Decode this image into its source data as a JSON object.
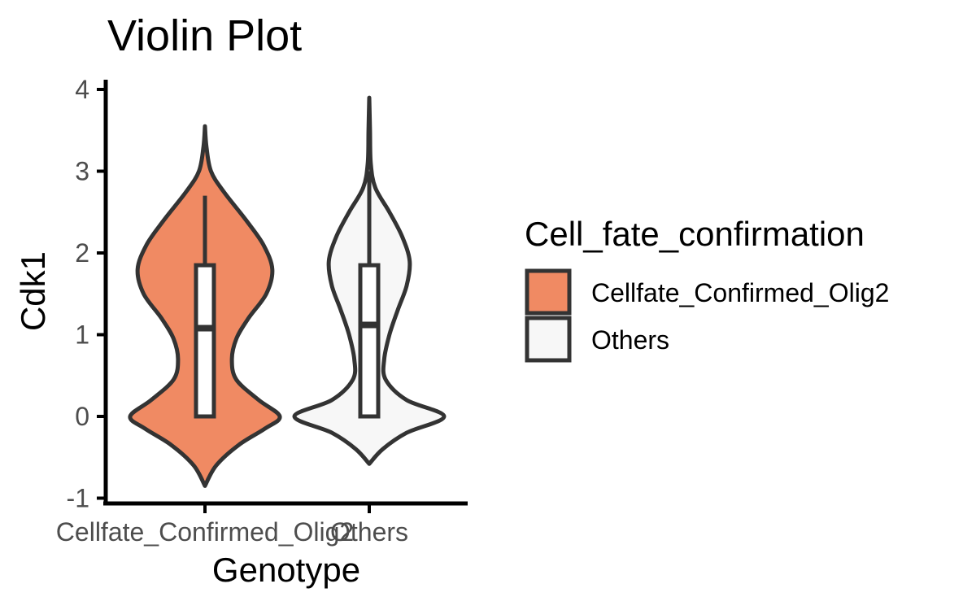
{
  "chart_data": {
    "type": "violin",
    "title": "Violin Plot",
    "xlabel": "Genotype",
    "ylabel": "Cdk1",
    "categories": [
      "Cellfate_Confirmed_Olig2",
      "Others"
    ],
    "ylim": [
      -1,
      4
    ],
    "yticks": [
      -1,
      0,
      1,
      2,
      3,
      4
    ],
    "ytick_labels": [
      "-1",
      "0",
      "1",
      "2",
      "3",
      "4"
    ],
    "grid": false,
    "legend": {
      "title": "Cell_fate_confirmation",
      "placement": "right",
      "entries": [
        "Cellfate_Confirmed_Olig2",
        "Others"
      ]
    },
    "series": [
      {
        "category": "Cellfate_Confirmed_Olig2",
        "color": "#f08a63",
        "violin_min": -0.85,
        "violin_max": 3.55,
        "density": [
          [
            -0.85,
            0.0
          ],
          [
            -0.6,
            0.15
          ],
          [
            -0.35,
            0.45
          ],
          [
            -0.15,
            0.8
          ],
          [
            0.0,
            1.0
          ],
          [
            0.2,
            0.72
          ],
          [
            0.45,
            0.42
          ],
          [
            0.7,
            0.36
          ],
          [
            0.95,
            0.42
          ],
          [
            1.2,
            0.58
          ],
          [
            1.5,
            0.82
          ],
          [
            1.8,
            0.9
          ],
          [
            2.1,
            0.78
          ],
          [
            2.4,
            0.55
          ],
          [
            2.75,
            0.25
          ],
          [
            3.0,
            0.08
          ],
          [
            3.3,
            0.02
          ],
          [
            3.55,
            0.0
          ]
        ],
        "box": {
          "lower_whisker": 0.0,
          "q1": 0.0,
          "median": 1.08,
          "q3": 1.85,
          "upper_whisker": 2.7
        }
      },
      {
        "category": "Others",
        "color": "#f7f7f7",
        "violin_min": -0.58,
        "violin_max": 3.9,
        "density": [
          [
            -0.58,
            0.0
          ],
          [
            -0.4,
            0.18
          ],
          [
            -0.2,
            0.5
          ],
          [
            0.0,
            1.0
          ],
          [
            0.2,
            0.5
          ],
          [
            0.45,
            0.22
          ],
          [
            0.7,
            0.2
          ],
          [
            1.0,
            0.27
          ],
          [
            1.3,
            0.38
          ],
          [
            1.6,
            0.5
          ],
          [
            1.9,
            0.54
          ],
          [
            2.2,
            0.44
          ],
          [
            2.5,
            0.27
          ],
          [
            2.8,
            0.08
          ],
          [
            3.1,
            0.02
          ],
          [
            3.5,
            0.01
          ],
          [
            3.9,
            0.0
          ]
        ],
        "box": {
          "lower_whisker": 0.0,
          "q1": 0.0,
          "median": 1.12,
          "q3": 1.85,
          "upper_whisker": 3.0
        }
      }
    ]
  }
}
